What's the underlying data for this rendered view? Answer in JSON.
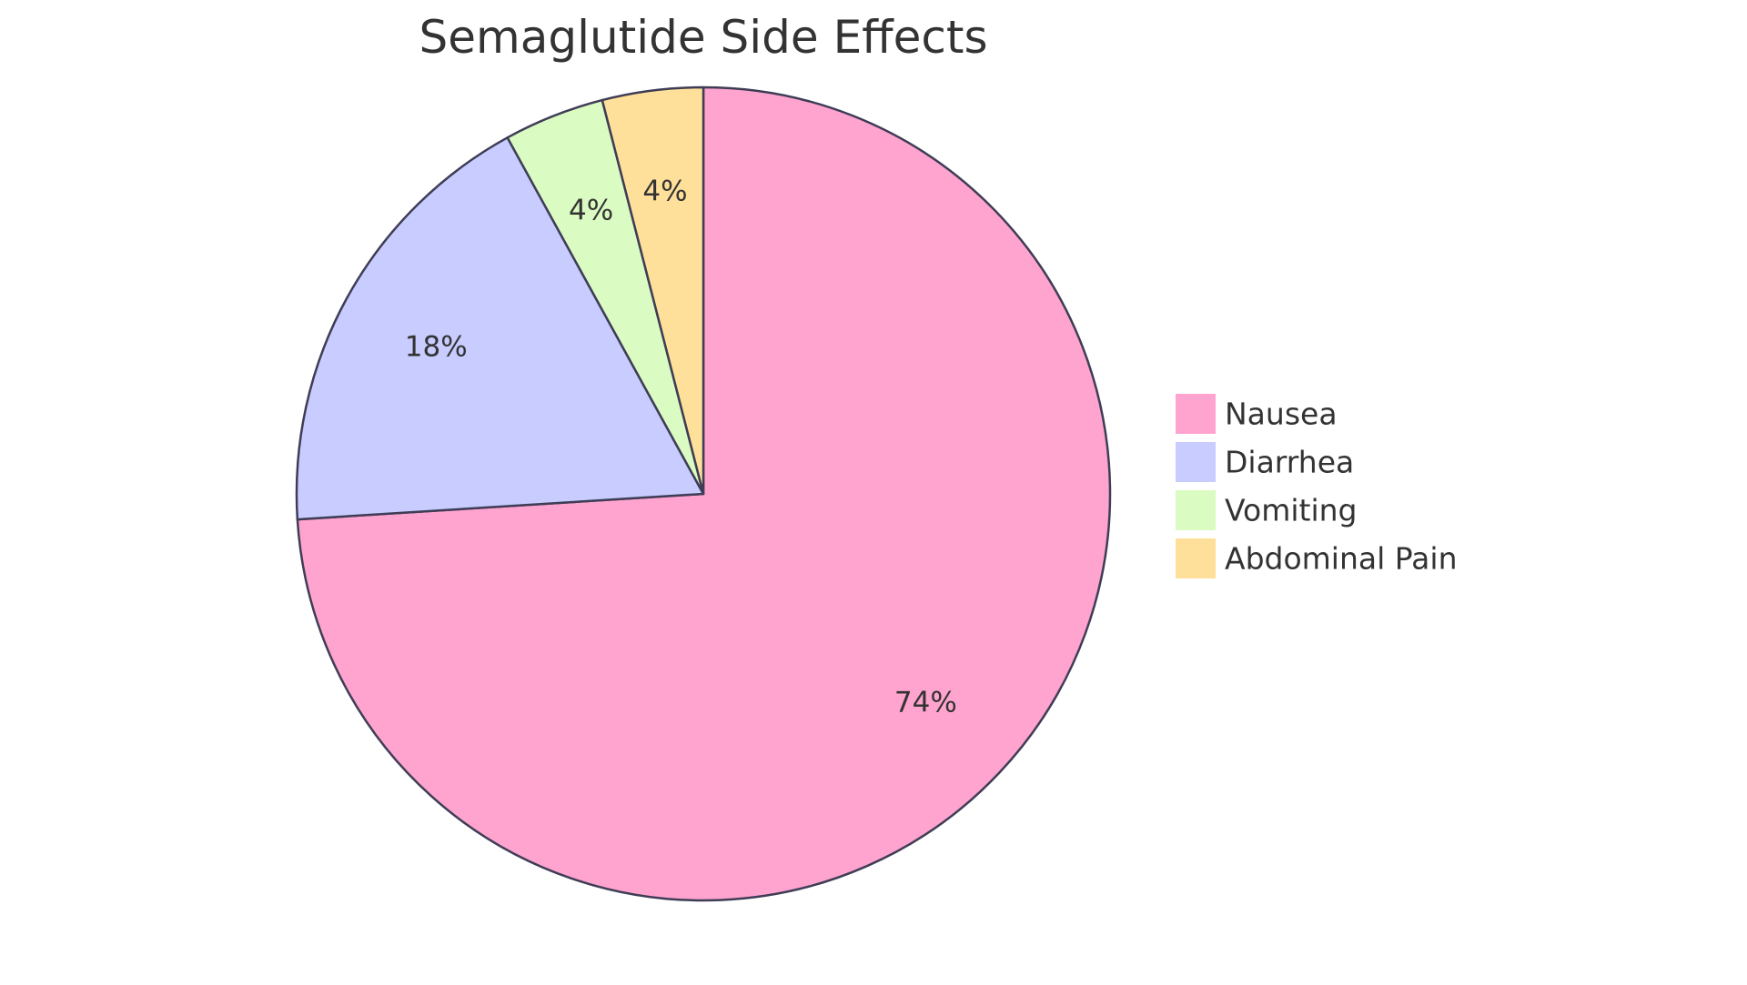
{
  "chart_data": {
    "type": "pie",
    "title": "Semaglutide Side Effects",
    "categories": [
      "Nausea",
      "Diarrhea",
      "Vomiting",
      "Abdominal Pain"
    ],
    "values": [
      74,
      18,
      4,
      4
    ],
    "labels": [
      "74%",
      "18%",
      "4%",
      "4%"
    ],
    "colors": [
      "#FFA3CF",
      "#C8CCFF",
      "#DAFBC1",
      "#FFE09A"
    ],
    "stroke_color": "#3F3D56",
    "start_angle": "top",
    "direction": "clockwise",
    "legend_placement": "right"
  }
}
